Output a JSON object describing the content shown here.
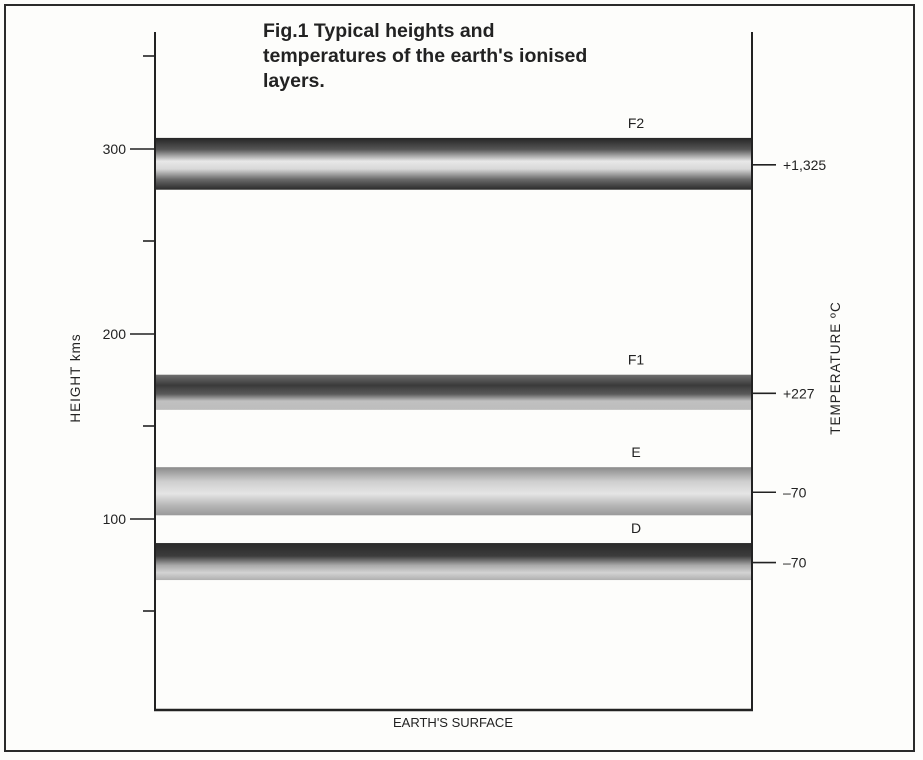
{
  "caption": {
    "line1": "Fig.1 Typical heights and",
    "line2": "temperatures of the earth's ionised",
    "line3": "layers."
  },
  "axes": {
    "left_title": "HEIGHT kms",
    "right_title": "TEMPERATURE ºC",
    "bottom_label": "EARTH'S SURFACE"
  },
  "height_ticks": [
    "300",
    "200",
    "100"
  ],
  "layers": [
    {
      "name": "F2",
      "temperature": "+1,325",
      "height_top_km": 306,
      "height_bottom_km": 278
    },
    {
      "name": "F1",
      "temperature": "+227",
      "height_top_km": 178,
      "height_bottom_km": 159
    },
    {
      "name": "E",
      "temperature": "–70",
      "height_top_km": 128,
      "height_bottom_km": 102
    },
    {
      "name": "D",
      "temperature": "–70",
      "height_top_km": 87,
      "height_bottom_km": 67
    }
  ],
  "colors": {
    "dark_band": "#2b2b2b",
    "light_band": "#e6e6e6",
    "mid_band": "#8f8f8f"
  }
}
